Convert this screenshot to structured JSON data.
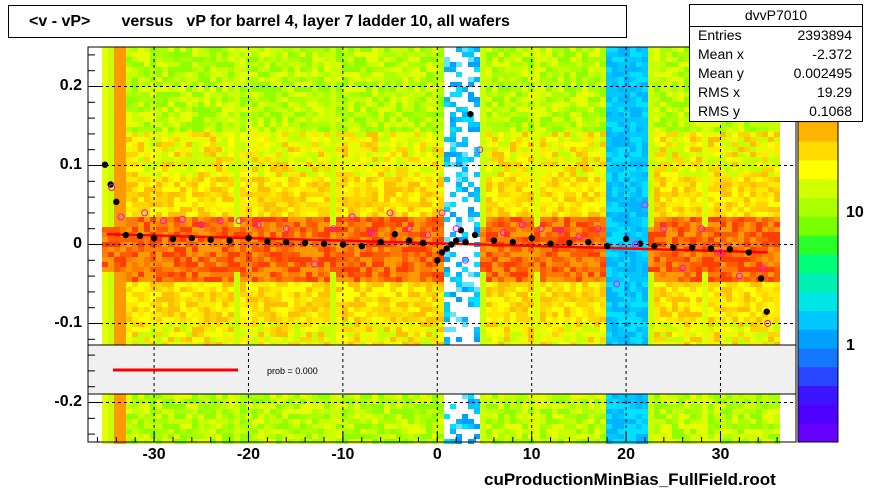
{
  "title": "<v - vP>       versus   vP for barrel 4, layer 7 ladder 10, all wafers",
  "stats": {
    "name": "dvvP7010",
    "rows": [
      {
        "label": "Entries",
        "value": "2393894"
      },
      {
        "label": "Mean x",
        "value": "-2.372"
      },
      {
        "label": "Mean y",
        "value": "0.002495"
      },
      {
        "label": "RMS x",
        "value": "19.29"
      },
      {
        "label": "RMS y",
        "value": "0.1068"
      }
    ]
  },
  "footer": "cuProductionMinBias_FullField.root",
  "legend": {
    "prob_label": "prob = 0.000"
  },
  "colors": {
    "fit_line": "#ff0000",
    "profile_points": "#000000",
    "outlier_markers": "#ff00ff"
  },
  "chart_data": {
    "type": "heatmap",
    "xlim": [
      -37,
      38
    ],
    "ylim": [
      -0.25,
      0.25
    ],
    "x_ticks": [
      -30,
      -20,
      -10,
      0,
      10,
      20,
      30
    ],
    "x_tick_labels": [
      "-30",
      "-20",
      "-10",
      "0",
      "10",
      "20",
      "30"
    ],
    "y_ticks": [
      -0.2,
      -0.1,
      0,
      0.1,
      0.2
    ],
    "y_tick_labels": [
      "-0.2",
      "-0.1",
      "0",
      "0.1",
      "0.2"
    ],
    "z_scale": "log",
    "z_tick_labels": [
      "1",
      "10"
    ],
    "grid": true,
    "fit_line": {
      "x": [
        -35,
        35
      ],
      "y": [
        0.013,
        -0.01
      ]
    },
    "profile_points": {
      "x": [
        -35.2,
        -34.6,
        -34.0,
        -33.0,
        -31.5,
        -30,
        -28,
        -26,
        -24,
        -22,
        -20,
        -18,
        -16,
        -14,
        -12,
        -10,
        -8,
        -6,
        -4.5,
        -3,
        -1.5,
        0,
        0.5,
        1,
        1.5,
        2,
        2.5,
        3,
        3.5,
        4,
        6,
        8,
        10,
        12,
        14,
        16,
        18,
        20,
        21.5,
        23,
        25,
        27,
        29,
        31,
        33,
        34.3,
        34.9
      ],
      "y": [
        0.101,
        0.076,
        0.054,
        0.012,
        0.011,
        0.008,
        0.007,
        0.008,
        0.006,
        0.005,
        0.008,
        0.004,
        0.003,
        0.002,
        0.001,
        0.0,
        -0.002,
        0.003,
        0.013,
        0.005,
        0.002,
        -0.02,
        -0.01,
        -0.005,
        0.0,
        0.005,
        0.018,
        0.003,
        0.165,
        0.012,
        0.005,
        0.003,
        0.008,
        0.001,
        0.002,
        0.003,
        -0.002,
        0.007,
        0.001,
        -0.002,
        -0.004,
        -0.004,
        -0.005,
        -0.006,
        -0.01,
        -0.043,
        -0.085
      ]
    },
    "outlier_markers": {
      "x": [
        -34.5,
        -33.5,
        -31,
        -29,
        -27,
        -25,
        -23,
        -21,
        -19,
        -16,
        -13,
        -11,
        -9,
        -7,
        -5,
        -3,
        -1,
        0.5,
        2,
        3,
        4.5,
        7,
        9,
        11,
        13,
        15,
        17,
        19,
        21,
        22,
        24,
        26,
        28,
        30,
        32,
        34.5,
        35
      ],
      "y": [
        0.072,
        0.035,
        0.04,
        0.03,
        0.032,
        0.025,
        0.03,
        0.03,
        0.025,
        0.02,
        -0.025,
        0.02,
        0.035,
        0.015,
        0.04,
        0.02,
        0.012,
        0.04,
        0.02,
        -0.02,
        0.12,
        0.015,
        0.025,
        0.02,
        0.018,
        0.01,
        0.02,
        -0.05,
        0.0,
        0.05,
        0.02,
        -0.03,
        0.02,
        -0.01,
        -0.04,
        -0.03,
        -0.1
      ]
    }
  }
}
